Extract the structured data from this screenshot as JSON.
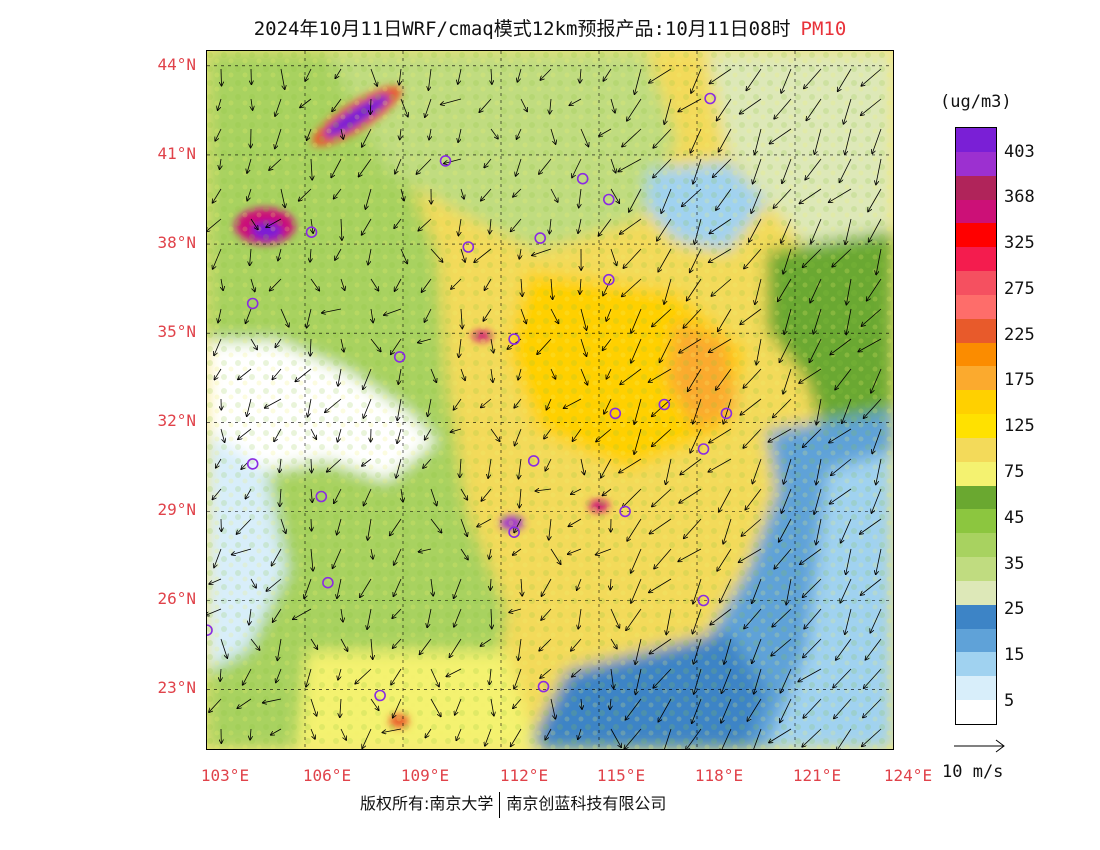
{
  "header": {
    "title": "2024年10月11日WRF/cmaq模式12km预报产品:10月11日08时",
    "product": "PM10"
  },
  "map": {
    "lat_labels": [
      "44°N",
      "41°N",
      "38°N",
      "35°N",
      "32°N",
      "29°N",
      "26°N",
      "23°N"
    ],
    "lon_labels": [
      "103°E",
      "106°E",
      "109°E",
      "112°E",
      "115°E",
      "118°E",
      "121°E",
      "124°E"
    ],
    "lat_range": [
      21,
      44.5
    ],
    "lon_range": [
      103,
      124
    ],
    "label_color": "#e0424a",
    "cities": [
      {
        "lon": 110.3,
        "lat": 40.8
      },
      {
        "lon": 114.5,
        "lat": 40.2
      },
      {
        "lon": 115.3,
        "lat": 39.5
      },
      {
        "lon": 118.4,
        "lat": 42.9
      },
      {
        "lon": 106.2,
        "lat": 38.4
      },
      {
        "lon": 111.0,
        "lat": 37.9
      },
      {
        "lon": 113.2,
        "lat": 38.2
      },
      {
        "lon": 115.3,
        "lat": 36.8
      },
      {
        "lon": 104.4,
        "lat": 36.0
      },
      {
        "lon": 108.9,
        "lat": 34.2
      },
      {
        "lon": 112.4,
        "lat": 34.8
      },
      {
        "lon": 115.5,
        "lat": 32.3
      },
      {
        "lon": 117.0,
        "lat": 32.6
      },
      {
        "lon": 118.9,
        "lat": 32.3
      },
      {
        "lon": 118.2,
        "lat": 31.1
      },
      {
        "lon": 104.4,
        "lat": 30.6
      },
      {
        "lon": 106.5,
        "lat": 29.5
      },
      {
        "lon": 113.0,
        "lat": 30.7
      },
      {
        "lon": 115.8,
        "lat": 29.0
      },
      {
        "lon": 112.4,
        "lat": 28.3
      },
      {
        "lon": 106.7,
        "lat": 26.6
      },
      {
        "lon": 118.2,
        "lat": 26.0
      },
      {
        "lon": 103.0,
        "lat": 25.0
      },
      {
        "lon": 108.3,
        "lat": 22.8
      },
      {
        "lon": 113.3,
        "lat": 23.1
      }
    ]
  },
  "colorbar": {
    "unit": "(ug/m3)",
    "labels": [
      "403",
      "368",
      "325",
      "275",
      "225",
      "175",
      "125",
      "75",
      "45",
      "35",
      "25",
      "15",
      "5"
    ],
    "colors": [
      "#7a1fd6",
      "#9c30d0",
      "#b0245a",
      "#cc1077",
      "#ff0000",
      "#f41c4e",
      "#f55060",
      "#fe6d6a",
      "#e85a2b",
      "#fb8c00",
      "#fbaa2e",
      "#ffd000",
      "#ffe100",
      "#f3da5a",
      "#f4f270",
      "#6aa830",
      "#8cc63f",
      "#a8d260",
      "#c0dc80",
      "#dde8b8",
      "#3d84c6",
      "#5fa2d8",
      "#a0d2f0",
      "#d8eefa",
      "#ffffff"
    ]
  },
  "vector": {
    "label": "10 m/s"
  },
  "footer": {
    "left": "版权所有:南京大学",
    "right": "南京创蓝科技有限公司"
  }
}
